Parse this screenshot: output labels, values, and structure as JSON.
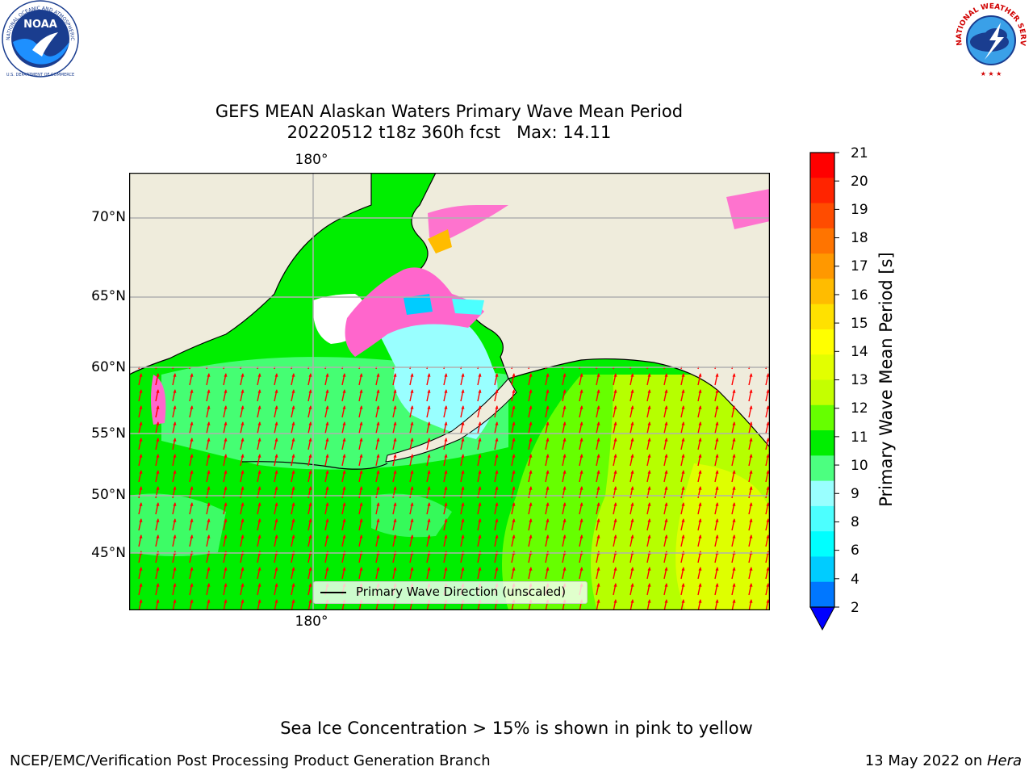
{
  "logos": {
    "noaa_text": "NOAA",
    "noaa_ring": "NATIONAL OCEANIC AND ATMOSPHERIC ADMINISTRATION",
    "noaa_bottom": "U.S. DEPARTMENT OF COMMERCE",
    "nws_ring": "NATIONAL WEATHER SERVICE"
  },
  "title": {
    "line1": "GEFS MEAN Alaskan Waters Primary Wave Mean Period",
    "line2": "20220512 t18z 360h fcst   Max: 14.11"
  },
  "map": {
    "lat_labels": [
      "70°N",
      "65°N",
      "60°N",
      "55°N",
      "50°N",
      "45°N"
    ],
    "lon_label_top": "180°",
    "lon_label_bottom": "180°",
    "legend_label": "Primary Wave Direction (unscaled)",
    "colors": {
      "land": "#efecdc",
      "ice_pink": "#ff66cc",
      "arrow": "#ff0000",
      "grid": "#b0b0b0"
    }
  },
  "colorbar": {
    "label": "Primary Wave Mean Period [s]",
    "ticks": [
      "21",
      "20",
      "19",
      "18",
      "17",
      "16",
      "15",
      "14",
      "13",
      "12",
      "11",
      "10",
      "9",
      "8",
      "6",
      "4",
      "2"
    ],
    "colors": [
      "#ff0000",
      "#ff2400",
      "#ff4c00",
      "#ff7400",
      "#ff9800",
      "#ffbc00",
      "#ffe100",
      "#ffff00",
      "#e2ff00",
      "#c4ff00",
      "#66ff00",
      "#00ee00",
      "#4cff80",
      "#99ffff",
      "#4cffff",
      "#00ffff",
      "#00ccff",
      "#0077ff"
    ],
    "under_color": "#0000ff"
  },
  "footer": {
    "ice_note": "Sea Ice Concentration > 15% is shown in pink to yellow",
    "left": "NCEP/EMC/Verification Post Processing Product Generation Branch",
    "right_date": "13 May 2022 on ",
    "right_host": "Hera"
  }
}
